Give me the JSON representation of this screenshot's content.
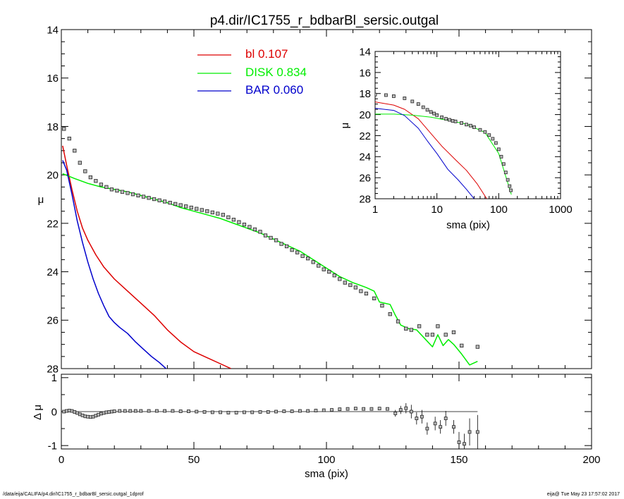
{
  "title": "p4.dir/IC1755_r_bdbarBl_sersic.outgal",
  "footer": {
    "path": "/data/eija/CALIFA/p4.dir/IC1755_r_bdbarBl_sersic.outgal_1dprof",
    "stamp": "eija@  Tue May 23 17:57:02 2017"
  },
  "colors": {
    "bl": "#dd0000",
    "disk": "#00ee00",
    "bar": "#0000cc",
    "axis": "#000000",
    "data": "#555555"
  },
  "chart_data": [
    {
      "id": "main",
      "type": "line",
      "title": "p4.dir/IC1755_r_bdbarBl_sersic.outgal",
      "xlabel": "",
      "ylabel": "μ",
      "xlim": [
        0,
        200
      ],
      "ylim": [
        28,
        14
      ],
      "y_inverted": true,
      "xticks": [
        0,
        50,
        100,
        150,
        200
      ],
      "yticks": [
        14,
        16,
        18,
        20,
        22,
        24,
        26,
        28
      ],
      "legend": {
        "placement": "top-center",
        "entries": [
          {
            "name": "bl",
            "value": "0.107",
            "color": "#dd0000"
          },
          {
            "name": "DISK",
            "value": "0.834",
            "color": "#00ee00"
          },
          {
            "name": "BAR",
            "value": "0.060",
            "color": "#0000cc"
          }
        ]
      },
      "series": [
        {
          "name": "bl",
          "color": "#dd0000",
          "x": [
            0.5,
            2,
            4,
            6,
            8,
            10,
            13,
            16,
            20,
            25,
            30,
            35,
            40,
            45,
            50,
            55,
            60,
            64
          ],
          "y": [
            18.8,
            19.6,
            20.6,
            21.5,
            22.2,
            22.7,
            23.3,
            23.8,
            24.3,
            24.8,
            25.3,
            25.8,
            26.4,
            26.9,
            27.3,
            27.55,
            27.8,
            28.0
          ]
        },
        {
          "name": "DISK",
          "color": "#00ee00",
          "x": [
            0.5,
            5,
            10,
            15,
            20,
            25,
            30,
            35,
            40,
            45,
            50,
            55,
            60,
            65,
            70,
            75,
            80,
            85,
            90,
            95,
            100,
            105,
            110,
            115,
            118,
            120,
            122,
            124,
            126,
            128,
            131,
            134,
            137,
            140,
            142,
            144,
            146,
            148,
            151,
            154,
            157
          ],
          "y": [
            19.95,
            20.15,
            20.35,
            20.5,
            20.6,
            20.7,
            20.85,
            21.0,
            21.15,
            21.35,
            21.5,
            21.65,
            21.8,
            22.0,
            22.2,
            22.4,
            22.65,
            22.9,
            23.15,
            23.5,
            23.85,
            24.2,
            24.45,
            24.65,
            24.8,
            25.25,
            25.3,
            25.35,
            25.8,
            26.2,
            26.35,
            26.4,
            26.75,
            27.1,
            26.6,
            27.05,
            26.8,
            27.0,
            27.4,
            27.85,
            27.7
          ]
        },
        {
          "name": "BAR",
          "color": "#0000cc",
          "x": [
            0.5,
            2,
            4,
            6,
            8,
            10,
            12,
            14,
            16,
            18,
            20,
            22,
            25,
            28,
            31,
            34,
            37,
            40
          ],
          "y": [
            19.4,
            19.8,
            20.8,
            21.9,
            22.8,
            23.6,
            24.3,
            24.9,
            25.4,
            25.85,
            26.1,
            26.3,
            26.55,
            26.9,
            27.2,
            27.5,
            27.75,
            28.05
          ]
        },
        {
          "name": "data",
          "style": "squares",
          "x": [
            1,
            3,
            5,
            7,
            9,
            11,
            13,
            15,
            17,
            19,
            21,
            23,
            25,
            27,
            29,
            31,
            33,
            35,
            37,
            39,
            41,
            43,
            45,
            47,
            49,
            51,
            53,
            55,
            57,
            59,
            61,
            63,
            65,
            67,
            69,
            71,
            73,
            75,
            77,
            79,
            81,
            83,
            85,
            87,
            89,
            91,
            93,
            95,
            97,
            99,
            101,
            103,
            105,
            107,
            109,
            111,
            113,
            115,
            118,
            121,
            124,
            127,
            130,
            132,
            135,
            138,
            140,
            142,
            145,
            148,
            151,
            157
          ],
          "y": [
            18.1,
            18.5,
            19.0,
            19.5,
            19.85,
            20.1,
            20.25,
            20.4,
            20.5,
            20.6,
            20.65,
            20.7,
            20.75,
            20.8,
            20.85,
            20.9,
            20.95,
            21.0,
            21.05,
            21.1,
            21.15,
            21.2,
            21.25,
            21.3,
            21.35,
            21.4,
            21.45,
            21.5,
            21.55,
            21.6,
            21.65,
            21.75,
            21.85,
            21.95,
            22.05,
            22.15,
            22.25,
            22.35,
            22.5,
            22.6,
            22.7,
            22.85,
            22.95,
            23.1,
            23.2,
            23.35,
            23.45,
            23.6,
            23.75,
            23.9,
            24.0,
            24.15,
            24.3,
            24.45,
            24.55,
            24.65,
            24.8,
            24.9,
            25.1,
            25.4,
            25.75,
            26.05,
            26.35,
            26.4,
            26.25,
            26.6,
            26.6,
            26.25,
            26.6,
            26.5,
            27.05,
            27.1
          ]
        }
      ]
    },
    {
      "id": "residual",
      "type": "scatter",
      "xlabel": "sma (pix)",
      "ylabel": "Δ μ",
      "xlim": [
        0,
        200
      ],
      "ylim": [
        -1.1,
        1.1
      ],
      "xticks": [
        0,
        50,
        100,
        150,
        200
      ],
      "yticks": [
        -1,
        0,
        1
      ],
      "zero_line": {
        "x": [
          0,
          157
        ],
        "y": 0
      },
      "series": [
        {
          "name": "residual",
          "style": "squares-with-errorbars",
          "x": [
            1,
            2,
            3,
            4,
            5,
            6,
            7,
            8,
            9,
            10,
            11,
            12,
            13,
            14,
            15,
            16,
            17,
            18,
            19,
            20,
            22,
            24,
            26,
            28,
            30,
            33,
            36,
            39,
            42,
            45,
            48,
            51,
            54,
            57,
            60,
            63,
            66,
            69,
            72,
            75,
            78,
            81,
            84,
            87,
            90,
            93,
            96,
            99,
            102,
            105,
            108,
            111,
            114,
            117,
            120,
            123,
            126,
            128,
            130,
            132,
            134,
            136,
            138,
            141,
            143,
            145,
            148,
            150,
            152,
            154,
            157
          ],
          "y": [
            0.0,
            0.02,
            0.03,
            0.02,
            -0.01,
            -0.04,
            -0.08,
            -0.11,
            -0.14,
            -0.15,
            -0.16,
            -0.15,
            -0.12,
            -0.09,
            -0.06,
            -0.04,
            -0.02,
            -0.01,
            0.0,
            0.01,
            0.02,
            0.02,
            0.02,
            0.02,
            0.02,
            0.02,
            0.02,
            0.02,
            0.02,
            0.01,
            0.01,
            0.0,
            -0.01,
            -0.02,
            -0.02,
            -0.03,
            -0.03,
            -0.02,
            -0.02,
            -0.01,
            -0.01,
            0.0,
            0.01,
            0.01,
            0.02,
            0.02,
            0.03,
            0.04,
            0.05,
            0.07,
            0.08,
            0.09,
            0.08,
            0.08,
            0.09,
            0.08,
            -0.05,
            0.05,
            0.1,
            -0.0,
            -0.2,
            -0.15,
            -0.5,
            -0.35,
            -0.45,
            -0.2,
            -0.45,
            -0.9,
            -0.95,
            -0.6,
            -0.6
          ],
          "err": [
            0.01,
            0.01,
            0.01,
            0.01,
            0.01,
            0.01,
            0.01,
            0.01,
            0.01,
            0.01,
            0.01,
            0.01,
            0.01,
            0.01,
            0.01,
            0.01,
            0.01,
            0.01,
            0.01,
            0.01,
            0.01,
            0.01,
            0.01,
            0.01,
            0.01,
            0.01,
            0.01,
            0.01,
            0.01,
            0.01,
            0.01,
            0.01,
            0.01,
            0.01,
            0.01,
            0.01,
            0.01,
            0.01,
            0.01,
            0.01,
            0.01,
            0.01,
            0.01,
            0.01,
            0.01,
            0.01,
            0.01,
            0.01,
            0.01,
            0.01,
            0.01,
            0.01,
            0.01,
            0.01,
            0.01,
            0.01,
            0.1,
            0.12,
            0.15,
            0.2,
            0.18,
            0.2,
            0.18,
            0.2,
            0.2,
            0.22,
            0.2,
            0.3,
            0.3,
            0.4,
            0.5
          ]
        }
      ]
    },
    {
      "id": "inset",
      "type": "line",
      "xlabel": "sma (pix)",
      "ylabel": "μ",
      "xscale": "log",
      "xlim": [
        1,
        1000
      ],
      "ylim": [
        28,
        14
      ],
      "y_inverted": true,
      "xticks": [
        1,
        10,
        100,
        1000
      ],
      "xtick_labels": [
        "1",
        "10",
        "100",
        "1000"
      ],
      "yticks": [
        14,
        16,
        18,
        20,
        22,
        24,
        26,
        28
      ],
      "series": [
        {
          "name": "bl",
          "color": "#dd0000",
          "x": [
            1,
            2,
            3,
            5,
            8,
            12,
            20,
            30,
            45,
            64
          ],
          "y": [
            18.8,
            19.1,
            19.5,
            20.4,
            21.8,
            23.0,
            24.3,
            25.3,
            26.6,
            28.0
          ]
        },
        {
          "name": "DISK",
          "color": "#00ee00",
          "x": [
            1,
            2,
            4,
            8,
            15,
            30,
            60,
            100,
            160
          ],
          "y": [
            19.95,
            19.95,
            20.05,
            20.25,
            20.55,
            20.9,
            21.7,
            23.7,
            27.6
          ]
        },
        {
          "name": "BAR",
          "color": "#0000cc",
          "x": [
            1,
            2,
            3,
            5,
            7,
            10,
            15,
            22,
            30,
            40
          ],
          "y": [
            19.4,
            19.6,
            20.1,
            21.3,
            22.5,
            23.7,
            25.2,
            26.2,
            27.1,
            28.0
          ]
        },
        {
          "name": "data",
          "style": "squares",
          "x": [
            1,
            1.5,
            2,
            3,
            4,
            5,
            6,
            7,
            8,
            9,
            10,
            12,
            14,
            16,
            18,
            20,
            25,
            30,
            35,
            40,
            50,
            60,
            70,
            80,
            90,
            100,
            110,
            120,
            130,
            140,
            150,
            157
          ],
          "y": [
            18.1,
            18.15,
            18.25,
            18.45,
            18.75,
            19.0,
            19.3,
            19.55,
            19.75,
            19.9,
            20.05,
            20.25,
            20.4,
            20.5,
            20.6,
            20.65,
            20.8,
            20.95,
            21.05,
            21.2,
            21.45,
            21.65,
            21.95,
            22.3,
            22.7,
            23.3,
            24.0,
            24.7,
            25.5,
            26.2,
            26.8,
            27.2
          ]
        }
      ]
    }
  ]
}
